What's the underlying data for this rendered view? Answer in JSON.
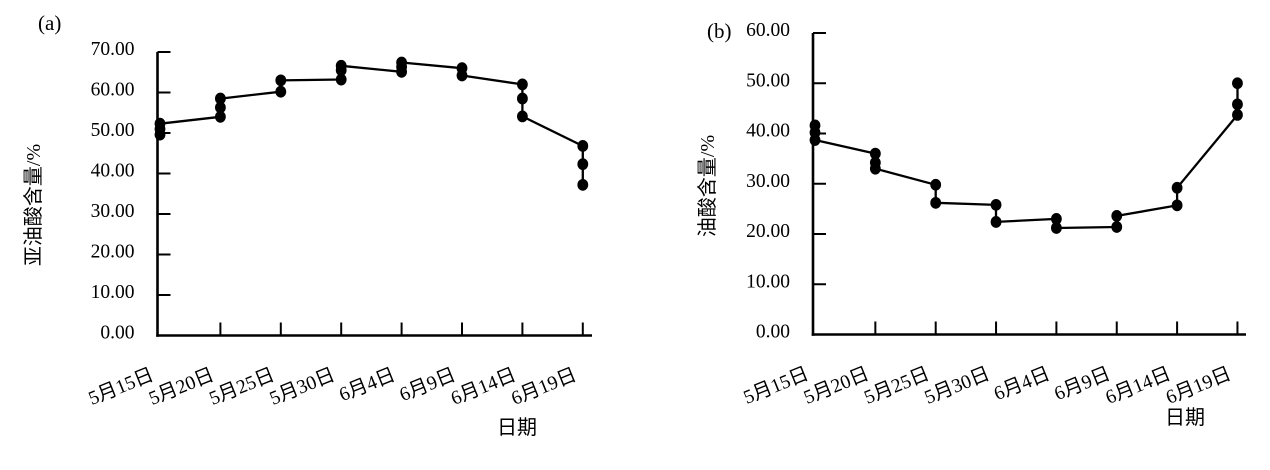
{
  "figure": {
    "background": "#ffffff",
    "ink": "#000000",
    "description": "two-panel-scatter-line-figure"
  },
  "chart_data": [
    {
      "type": "line",
      "panel_label": "(a)",
      "xlabel": "日期",
      "ylabel": "亚油酸含量/%",
      "ylim": [
        0,
        70
      ],
      "ytick_step": 10,
      "ytick_labels": [
        "0.00",
        "10.00",
        "20.00",
        "30.00",
        "40.00",
        "50.00",
        "60.00",
        "70.00"
      ],
      "categories": [
        "5月15日",
        "5月20日",
        "5月25日",
        "5月30日",
        "6月4日",
        "6月9日",
        "6月14日",
        "6月19日"
      ],
      "grid": false,
      "legend": "none",
      "marker": "filled-circle",
      "point_order": "polyline-path-order",
      "series": [
        {
          "name": "亚油酸含量",
          "points_by_category": [
            [
              49.6,
              51.0,
              52.3
            ],
            [
              54.0,
              56.3,
              58.5
            ],
            [
              60.2,
              63.0
            ],
            [
              63.2,
              65.5,
              66.6
            ],
            [
              65.1,
              66.3,
              67.4
            ],
            [
              66.0,
              64.2
            ],
            [
              62.0,
              58.5,
              54.1
            ],
            [
              46.8,
              42.3,
              37.2
            ]
          ]
        }
      ]
    },
    {
      "type": "line",
      "panel_label": "(b)",
      "xlabel": "日期",
      "ylabel": "油酸含量/%",
      "ylim": [
        0,
        60
      ],
      "ytick_step": 10,
      "ytick_labels": [
        "0.00",
        "10.00",
        "20.00",
        "30.00",
        "40.00",
        "50.00",
        "60.00"
      ],
      "categories": [
        "5月15日",
        "5月20日",
        "5月25日",
        "5月30日",
        "6月4日",
        "6月9日",
        "6月14日",
        "6月19日"
      ],
      "grid": false,
      "legend": "none",
      "marker": "filled-circle",
      "point_order": "polyline-path-order",
      "series": [
        {
          "name": "油酸含量",
          "points_by_category": [
            [
              41.6,
              40.2,
              38.7
            ],
            [
              36.0,
              34.2,
              33.0
            ],
            [
              29.8,
              26.2
            ],
            [
              25.8,
              22.4
            ],
            [
              23.0,
              21.2
            ],
            [
              21.4,
              23.6
            ],
            [
              25.7,
              29.2
            ],
            [
              43.7,
              45.8,
              50.0
            ]
          ]
        }
      ]
    }
  ]
}
